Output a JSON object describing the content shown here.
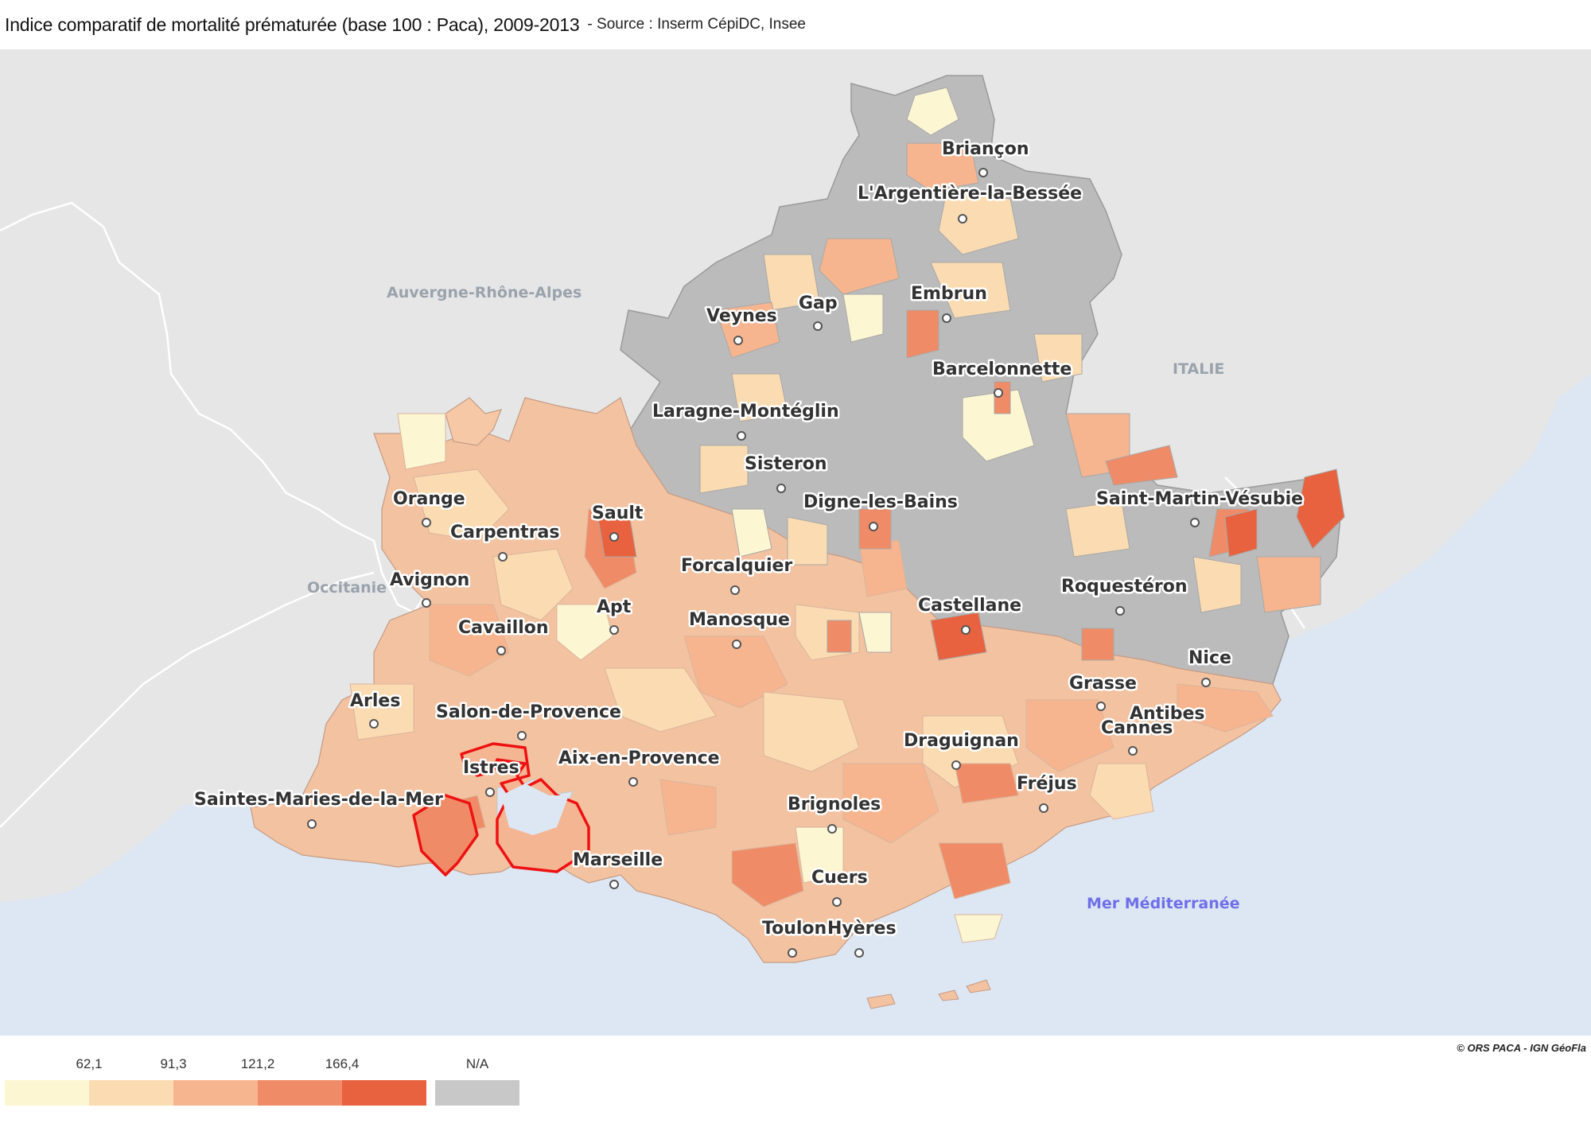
{
  "header": {
    "title": "Indice comparatif de mortalité prématurée (base 100 : Paca), 2009-2013",
    "source": "- Source : Inserm CépiDC, Insee"
  },
  "map": {
    "regions": [
      "Auvergne-Rhône-Alpes",
      "ITALIE",
      "Occitanie"
    ],
    "sea": "Mer Méditerranée",
    "cities": [
      "Briançon",
      "L'Argentière-la-Bessée",
      "Embrun",
      "Gap",
      "Veynes",
      "Barcelonnette",
      "Laragne-Montéglin",
      "Sisteron",
      "Digne-les-Bains",
      "Saint-Martin-Vésubie",
      "Orange",
      "Sault",
      "Carpentras",
      "Avignon",
      "Forcalquier",
      "Apt",
      "Roquestéron",
      "Castellane",
      "Manosque",
      "Cavaillon",
      "Nice",
      "Grasse",
      "Arles",
      "Antibes",
      "Salon-de-Provence",
      "Cannes",
      "Draguignan",
      "Istres",
      "Aix-en-Provence",
      "Fréjus",
      "Saintes-Maries-de-la-Mer",
      "Brignoles",
      "Marseille",
      "Cuers",
      "Toulon",
      "Hyères"
    ],
    "highlight": "Istres",
    "credit": "© ORS PACA - IGN GéoFla"
  },
  "legend": {
    "thresholds": [
      "62,1",
      "91,3",
      "121,2",
      "166,4"
    ],
    "na_label": "N/A",
    "colors": [
      "#fdf6d2",
      "#fbdcb2",
      "#f6b58f",
      "#ef8c67",
      "#e8623f"
    ],
    "na_color": "#c8c8c8"
  },
  "colors": {
    "background_land": "#e6e6e6",
    "sea": "#dde7f3",
    "no_data": "#b9b9b9",
    "highlight_outline": "#ee1111"
  }
}
